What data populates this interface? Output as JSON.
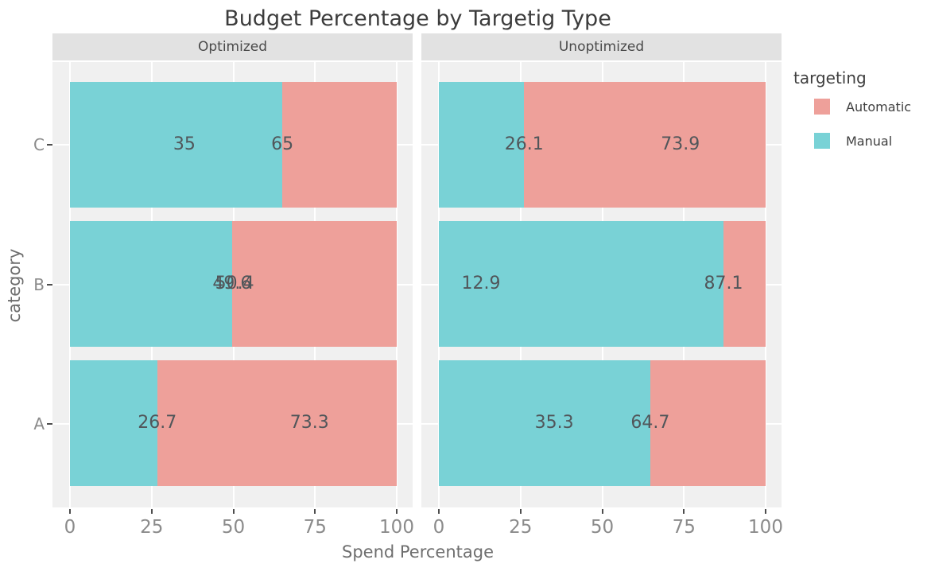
{
  "chart_data": {
    "type": "bar",
    "orientation": "horizontal",
    "stacked": true,
    "faceted": true,
    "title": "Budget Percentage by Targetig Type",
    "xlabel": "Spend Percentage",
    "ylabel": "category",
    "xlim": [
      0,
      100
    ],
    "x_ticks": [
      {
        "value": 0,
        "label": "0"
      },
      {
        "value": 25,
        "label": "25"
      },
      {
        "value": 50,
        "label": "50"
      },
      {
        "value": 75,
        "label": "75"
      },
      {
        "value": 100,
        "label": "100"
      }
    ],
    "categories_top_to_bottom": [
      "C",
      "B",
      "A"
    ],
    "facets": [
      {
        "label": "Optimized",
        "rows": [
          {
            "category": "C",
            "manual": 65,
            "automatic": 35,
            "manual_label": "65",
            "automatic_label": "35"
          },
          {
            "category": "B",
            "manual": 49.6,
            "automatic": 50.4,
            "manual_label": "49.6",
            "automatic_label": "50.4"
          },
          {
            "category": "A",
            "manual": 26.7,
            "automatic": 73.3,
            "manual_label": "26.7",
            "automatic_label": "73.3"
          }
        ]
      },
      {
        "label": "Unoptimized",
        "rows": [
          {
            "category": "C",
            "manual": 26.1,
            "automatic": 73.9,
            "manual_label": "26.1",
            "automatic_label": "73.9"
          },
          {
            "category": "B",
            "manual": 87.1,
            "automatic": 12.9,
            "manual_label": "87.1",
            "automatic_label": "12.9"
          },
          {
            "category": "A",
            "manual": 64.7,
            "automatic": 35.3,
            "manual_label": "64.7",
            "automatic_label": "35.3"
          }
        ]
      }
    ],
    "legend": {
      "title": "targeting",
      "entries": [
        {
          "label": "Automatic",
          "color": "#eea09a"
        },
        {
          "label": "Manual",
          "color": "#79d2d6"
        }
      ]
    },
    "colors": {
      "automatic": "#eea09a",
      "manual": "#79d2d6",
      "panel_background": "#f0f0f0",
      "strip_background": "#e2e2e2",
      "gridline": "#ffffff"
    }
  }
}
